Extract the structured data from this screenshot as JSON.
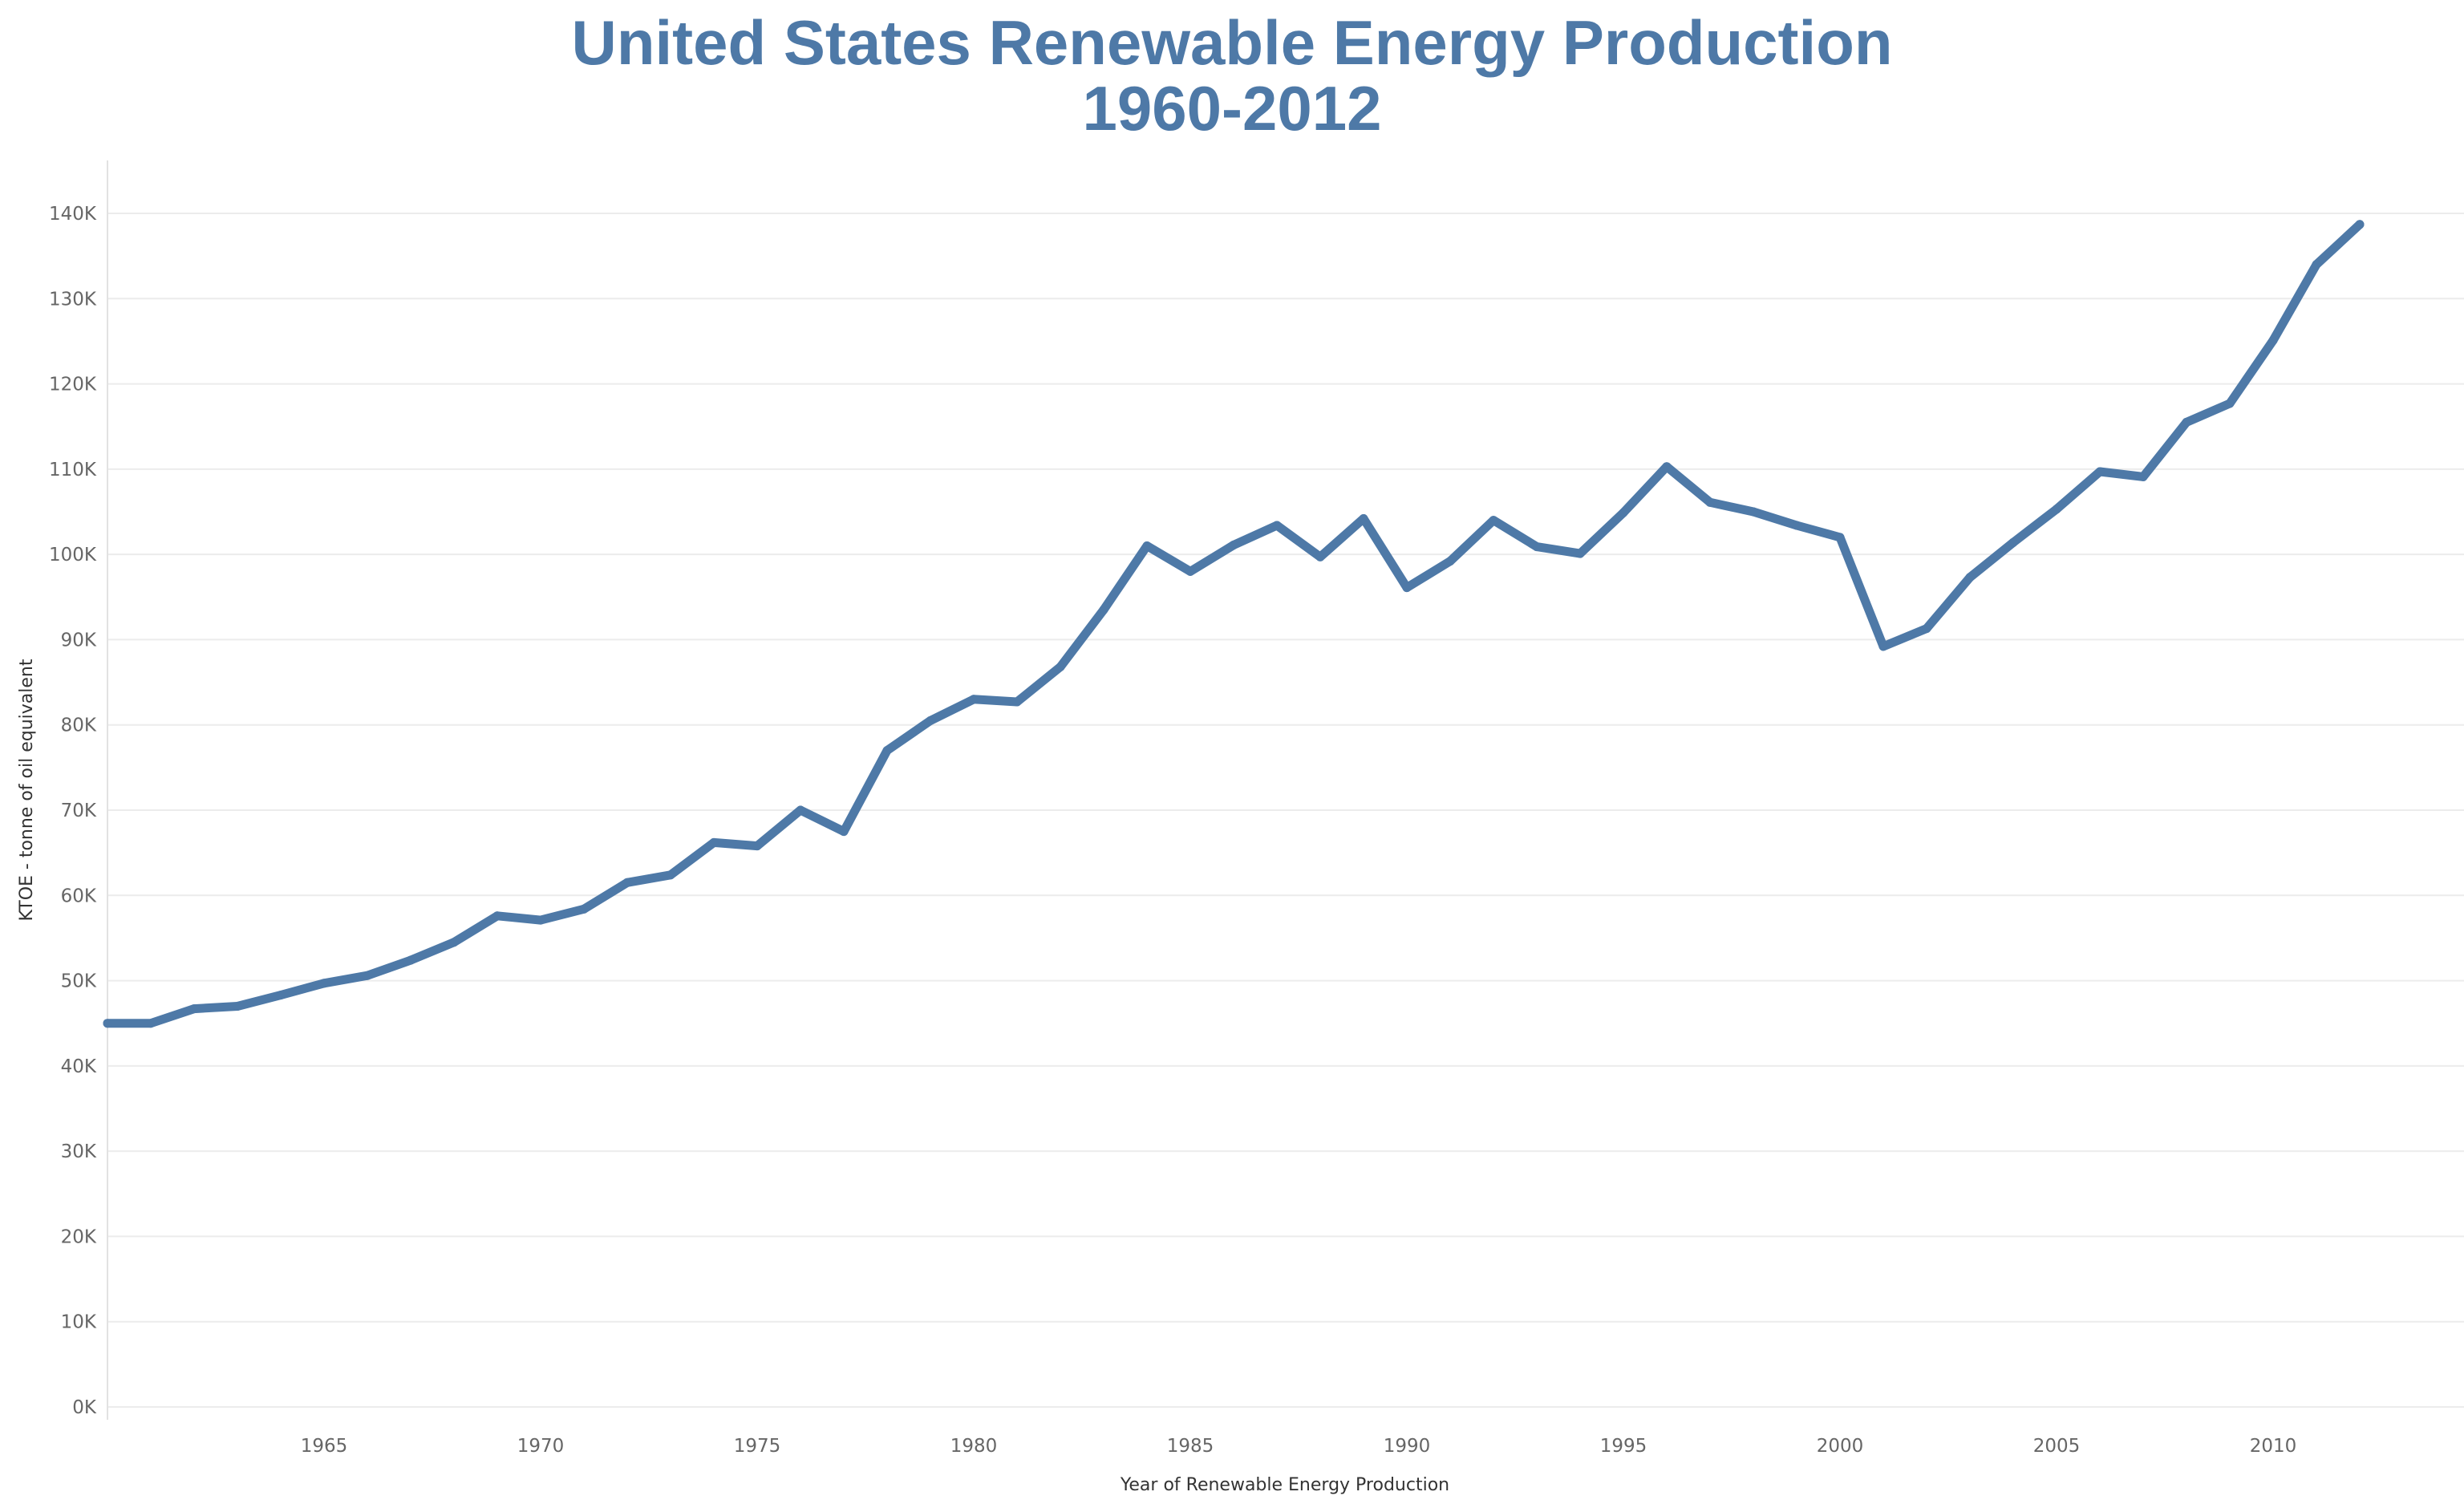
{
  "chart_data": {
    "type": "line",
    "title": "United States Renewable Energy Production",
    "subtitle": "1960-2012",
    "xlabel": "Year of Renewable Energy Production",
    "ylabel": "KTOE - tonne of oil equivalent",
    "xlim": [
      1960,
      2016
    ],
    "ylim": [
      0,
      140000
    ],
    "grid": true,
    "legend": "none",
    "color": "#4e79a7",
    "x_ticks": [
      1965,
      1970,
      1975,
      1980,
      1985,
      1990,
      1995,
      2000,
      2005,
      2010
    ],
    "y_ticks": [
      {
        "value": 0,
        "label": "0K"
      },
      {
        "value": 10000,
        "label": "10K"
      },
      {
        "value": 20000,
        "label": "20K"
      },
      {
        "value": 30000,
        "label": "30K"
      },
      {
        "value": 40000,
        "label": "40K"
      },
      {
        "value": 50000,
        "label": "50K"
      },
      {
        "value": 60000,
        "label": "60K"
      },
      {
        "value": 70000,
        "label": "70K"
      },
      {
        "value": 80000,
        "label": "80K"
      },
      {
        "value": 90000,
        "label": "90K"
      },
      {
        "value": 100000,
        "label": "100K"
      },
      {
        "value": 110000,
        "label": "110K"
      },
      {
        "value": 120000,
        "label": "120K"
      },
      {
        "value": 130000,
        "label": "130K"
      },
      {
        "value": 140000,
        "label": "140K"
      }
    ],
    "x": [
      1960,
      1961,
      1962,
      1963,
      1964,
      1965,
      1966,
      1967,
      1968,
      1969,
      1970,
      1971,
      1972,
      1973,
      1974,
      1975,
      1976,
      1977,
      1978,
      1979,
      1980,
      1981,
      1982,
      1983,
      1984,
      1985,
      1986,
      1987,
      1988,
      1989,
      1990,
      1991,
      1992,
      1993,
      1994,
      1995,
      1996,
      1997,
      1998,
      1999,
      2000,
      2001,
      2002,
      2003,
      2004,
      2005,
      2006,
      2007,
      2008,
      2009,
      2010,
      2011,
      2012
    ],
    "values": [
      45000,
      45000,
      46700,
      47000,
      48300,
      49700,
      50600,
      52400,
      54500,
      57600,
      57100,
      58400,
      61500,
      62400,
      66200,
      65800,
      70000,
      67500,
      77000,
      80500,
      83000,
      82700,
      86800,
      93500,
      101000,
      98000,
      101100,
      103400,
      99700,
      104200,
      96100,
      99200,
      104000,
      100900,
      100100,
      104900,
      110300,
      106100,
      105000,
      103400,
      102000,
      89200,
      91300,
      97300,
      101400,
      105300,
      109700,
      109100,
      115500,
      117700,
      125100,
      134000,
      138700
    ]
  }
}
